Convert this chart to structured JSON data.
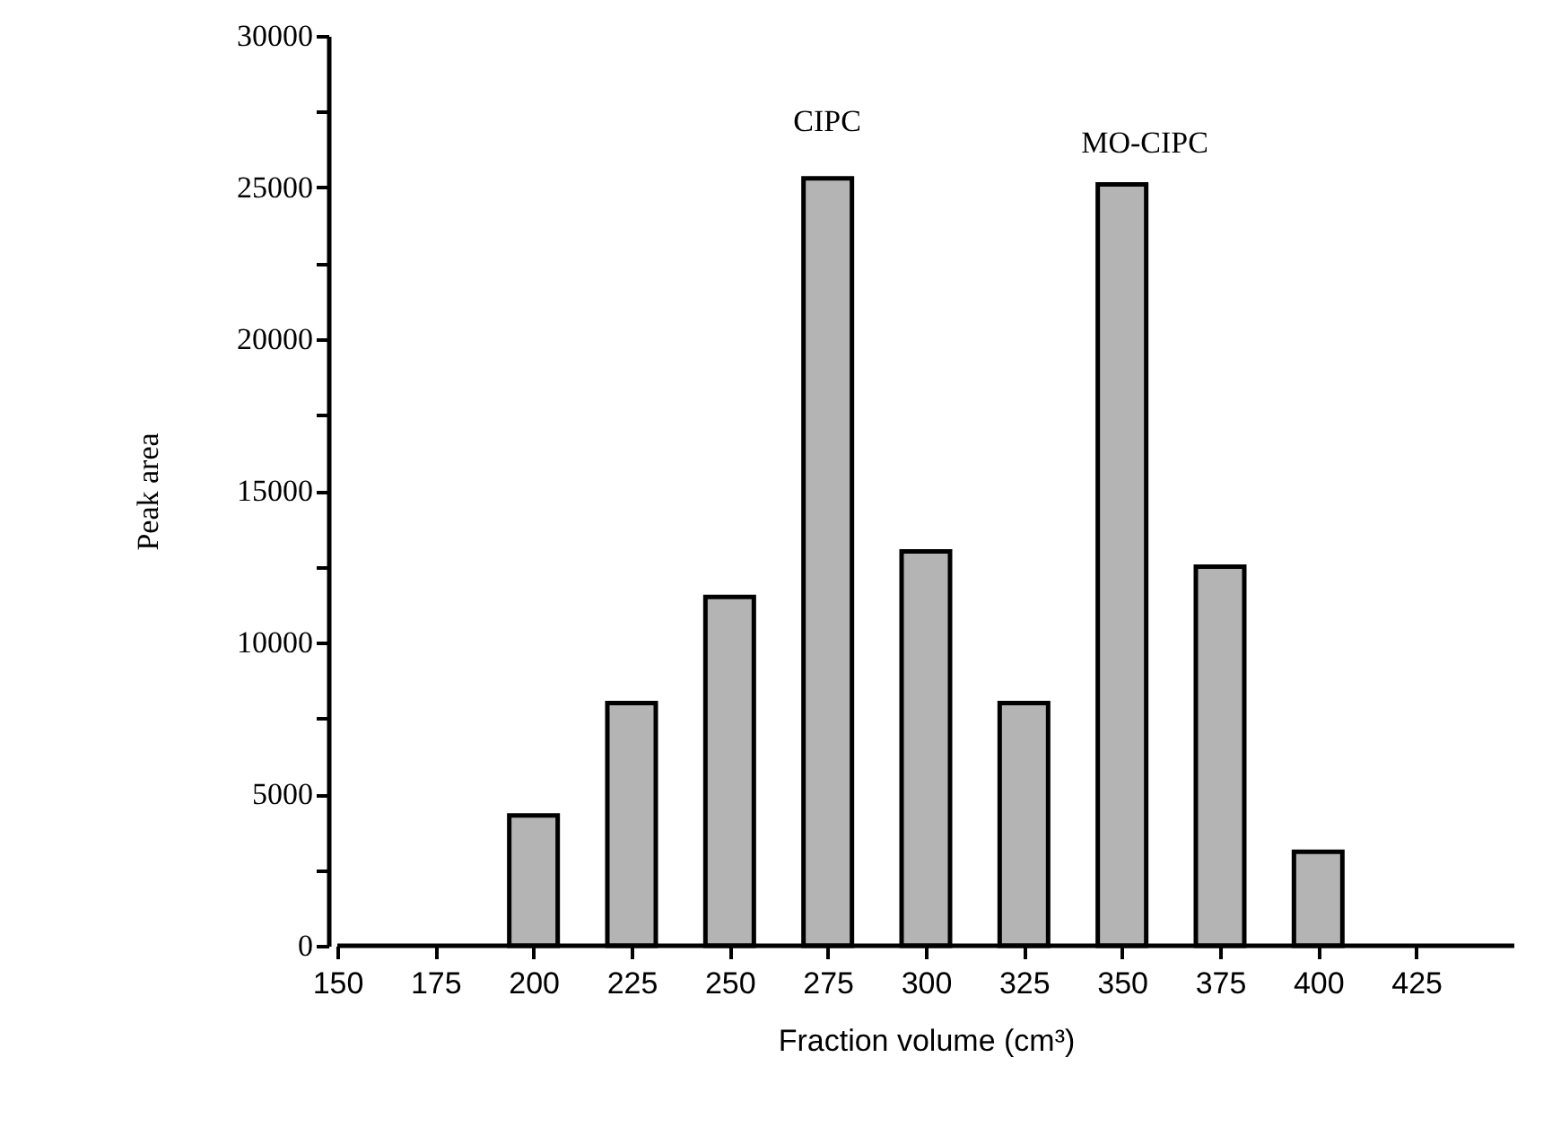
{
  "chart_data": {
    "type": "bar",
    "xlabel": "Fraction volume (cm³)",
    "ylabel": "Peak area",
    "x": [
      200,
      225,
      250,
      275,
      300,
      325,
      350,
      375,
      400
    ],
    "values": [
      4300,
      8000,
      11500,
      25300,
      13000,
      8000,
      25100,
      12500,
      3100
    ],
    "color": "#b4b4b4",
    "xlim": [
      150,
      450
    ],
    "xticks": [
      150,
      175,
      200,
      225,
      250,
      275,
      300,
      325,
      350,
      375,
      400,
      425
    ],
    "ylim": [
      0,
      30000
    ],
    "yticks": [
      0,
      {
        "value": 2500,
        "label": null
      },
      5000,
      {
        "value": 7500,
        "label": null
      },
      10000,
      {
        "value": 12500,
        "label": null
      },
      15000,
      {
        "value": 17500,
        "label": null
      },
      20000,
      {
        "value": 22500,
        "label": null
      },
      25000,
      {
        "value": 27500,
        "label": null
      },
      30000
    ],
    "annotations": [
      "CIPC",
      "MO-CIPC"
    ],
    "grid": false
  }
}
